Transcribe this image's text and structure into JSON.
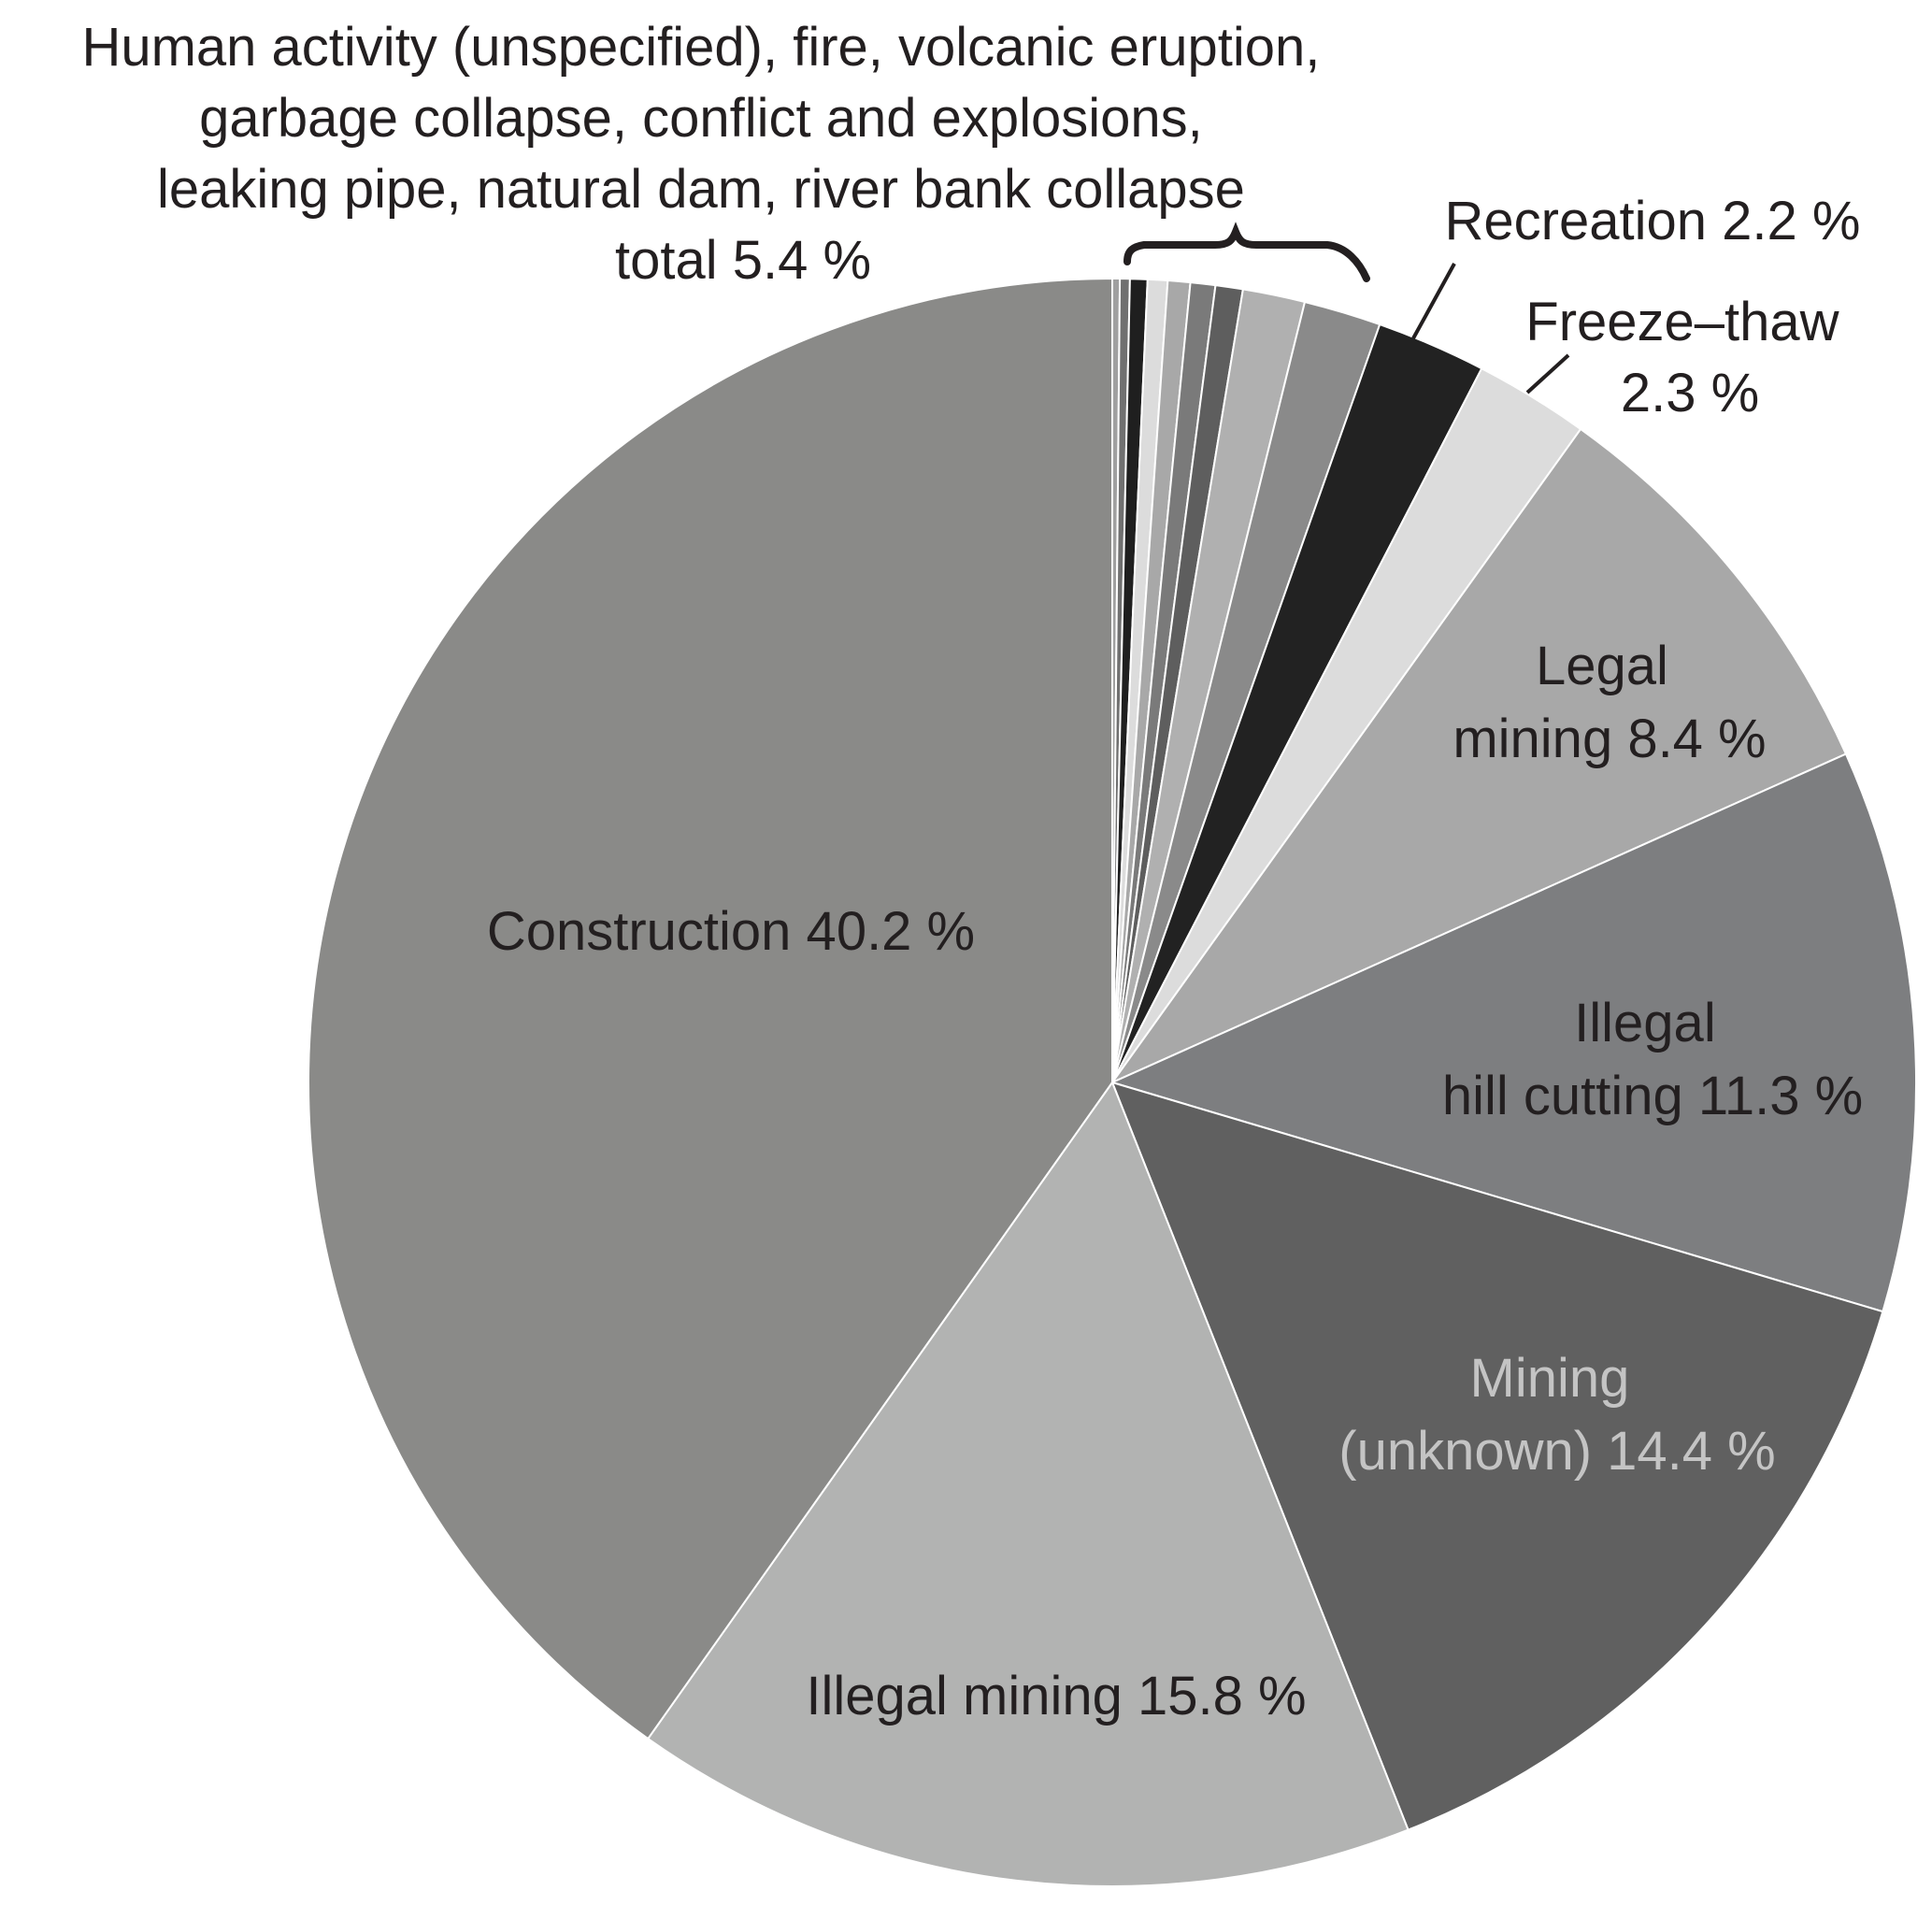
{
  "chart_data": {
    "type": "pie",
    "start": "12 o'clock",
    "direction": "clockwise",
    "slices": [
      {
        "label": "Human activity (unspecified), fire, volcanic eruption, garbage collapse, conflict and explosions, leaking pipe, natural dam, river bank collapse",
        "value": 5.4,
        "grouped": true
      },
      {
        "label": "Recreation",
        "value": 2.2,
        "color": "#222222"
      },
      {
        "label": "Freeze–thaw",
        "value": 2.3,
        "color": "#dcdcdc"
      },
      {
        "label": "Legal mining",
        "value": 8.4,
        "color": "#a8a8a8"
      },
      {
        "label": "Illegal hill cutting",
        "value": 11.3,
        "color": "#7d7e80"
      },
      {
        "label": "Mining (unknown)",
        "value": 14.4,
        "color": "#606060"
      },
      {
        "label": "Illegal mining",
        "value": 15.8,
        "color": "#b2b3b2"
      },
      {
        "label": "Construction",
        "value": 40.2,
        "color": "#8a8a88"
      }
    ],
    "other_group_slices": [
      {
        "value": 0.15,
        "color": "#a0a0a0"
      },
      {
        "value": 0.2,
        "color": "#707070"
      },
      {
        "value": 0.35,
        "color": "#1f1f1f"
      },
      {
        "value": 0.4,
        "color": "#dcdcdc"
      },
      {
        "value": 0.45,
        "color": "#a8a8a8"
      },
      {
        "value": 0.5,
        "color": "#7a7a7a"
      },
      {
        "value": 0.55,
        "color": "#5e5e5e"
      },
      {
        "value": 1.25,
        "color": "#b0b0b0"
      },
      {
        "value": 1.55,
        "color": "#8a8a8a"
      }
    ],
    "labels": {
      "other": [
        "Human activity (unspecified), fire, volcanic eruption,",
        "garbage collapse, conflict and explosions,",
        "leaking pipe, natural dam, river bank collapse",
        "total 5.4 %"
      ],
      "recreation": [
        "Recreation 2.2 %"
      ],
      "freeze_thaw": [
        "Freeze–thaw",
        "2.3 %"
      ],
      "legal_mining": [
        "Legal",
        "mining 8.4 %"
      ],
      "illegal_hill_cutting": [
        "Illegal",
        "hill cutting 11.3 %"
      ],
      "mining_unknown": [
        "Mining",
        "(unknown) 14.4 %"
      ],
      "illegal_mining": [
        "Illegal mining 15.8 %"
      ],
      "construction": [
        "Construction 40.2 %"
      ]
    },
    "label_colors": {
      "default": "#231f20",
      "mining_unknown": "#c4c4c4"
    }
  }
}
